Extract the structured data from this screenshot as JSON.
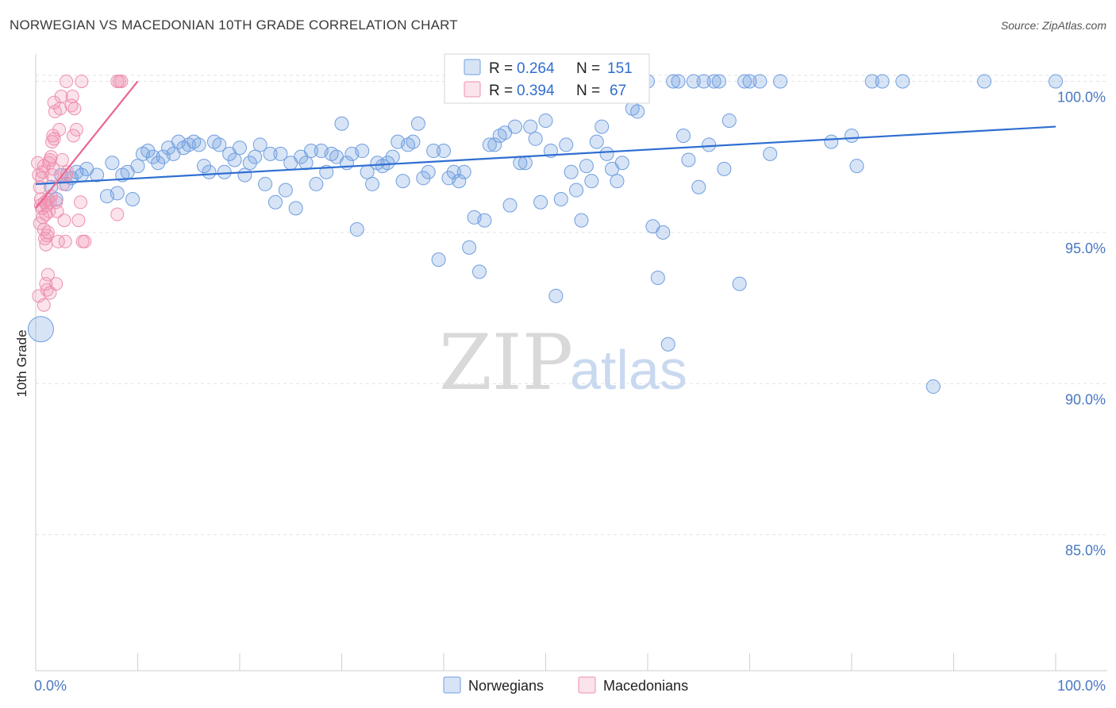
{
  "header": {
    "title": "NORWEGIAN VS MACEDONIAN 10TH GRADE CORRELATION CHART",
    "source": "Source: ZipAtlas.com"
  },
  "watermark": {
    "zip": "ZIP",
    "atlas": "atlas"
  },
  "colors": {
    "blue": "#6f9ee0",
    "blue_fill": "rgba(111,158,224,0.28)",
    "blue_line": "#2f6ed1",
    "pink": "#ee8fae",
    "pink_fill": "rgba(238,143,174,0.25)",
    "pink_line": "#e8678f",
    "grid": "#e3e3e3"
  },
  "chart_data": {
    "type": "scatter",
    "title": "NORWEGIAN VS MACEDONIAN 10TH GRADE CORRELATION CHART",
    "xlabel": "",
    "ylabel": "10th Grade",
    "xlim": [
      0,
      100
    ],
    "ylim": [
      80.5,
      100.8
    ],
    "x_tick_labels": [
      "0.0%",
      "100.0%"
    ],
    "y_ticks": [
      100,
      95,
      90,
      85
    ],
    "y_tick_labels": [
      "100.0%",
      "95.0%",
      "90.0%",
      "85.0%"
    ],
    "grid": "horizontal dashed",
    "legend_position": "top-center",
    "stats": [
      {
        "r_label": "R =",
        "r": "0.264",
        "n_label": "N =",
        "n": "151"
      },
      {
        "r_label": "R =",
        "r": "0.394",
        "n_label": "N =",
        "n": "67"
      }
    ],
    "series": [
      {
        "name": "Norwegians",
        "color": "#6f9ee0",
        "trend": {
          "x": [
            0,
            100
          ],
          "y": [
            96.6,
            98.5
          ]
        },
        "points": [
          [
            0.5,
            91.8
          ],
          [
            1.5,
            96.5
          ],
          [
            2,
            96.1
          ],
          [
            2.5,
            96.9
          ],
          [
            3,
            96.6
          ],
          [
            3.5,
            96.8
          ],
          [
            4,
            97.0
          ],
          [
            4.5,
            96.9
          ],
          [
            5,
            97.1
          ],
          [
            6,
            96.9
          ],
          [
            7,
            96.2
          ],
          [
            7.5,
            97.3
          ],
          [
            8,
            96.3
          ],
          [
            8.5,
            96.9
          ],
          [
            9,
            97.0
          ],
          [
            9.5,
            96.1
          ],
          [
            10,
            97.2
          ],
          [
            10.5,
            97.6
          ],
          [
            11,
            97.7
          ],
          [
            11.5,
            97.5
          ],
          [
            12,
            97.3
          ],
          [
            12.5,
            97.5
          ],
          [
            13,
            97.8
          ],
          [
            13.5,
            97.6
          ],
          [
            14,
            98.0
          ],
          [
            14.5,
            97.8
          ],
          [
            15,
            97.9
          ],
          [
            15.5,
            98.0
          ],
          [
            16,
            97.9
          ],
          [
            16.5,
            97.2
          ],
          [
            17,
            97.0
          ],
          [
            17.5,
            98.0
          ],
          [
            18,
            97.9
          ],
          [
            18.5,
            97.0
          ],
          [
            19,
            97.6
          ],
          [
            19.5,
            97.4
          ],
          [
            20,
            97.8
          ],
          [
            20.5,
            96.9
          ],
          [
            21,
            97.3
          ],
          [
            21.5,
            97.5
          ],
          [
            22,
            97.9
          ],
          [
            22.5,
            96.6
          ],
          [
            23,
            97.6
          ],
          [
            23.5,
            96.0
          ],
          [
            24,
            97.6
          ],
          [
            24.5,
            96.4
          ],
          [
            25,
            97.3
          ],
          [
            25.5,
            95.8
          ],
          [
            26,
            97.5
          ],
          [
            26.5,
            97.3
          ],
          [
            27,
            97.7
          ],
          [
            27.5,
            96.6
          ],
          [
            28,
            97.7
          ],
          [
            28.5,
            97.0
          ],
          [
            29,
            97.6
          ],
          [
            29.5,
            97.5
          ],
          [
            30,
            98.6
          ],
          [
            30.5,
            97.3
          ],
          [
            31,
            97.6
          ],
          [
            31.5,
            95.1
          ],
          [
            32,
            97.7
          ],
          [
            32.5,
            97.0
          ],
          [
            33,
            96.6
          ],
          [
            33.5,
            97.3
          ],
          [
            34,
            97.2
          ],
          [
            34.5,
            97.3
          ],
          [
            35,
            97.5
          ],
          [
            35.5,
            98.0
          ],
          [
            36,
            96.7
          ],
          [
            36.5,
            97.9
          ],
          [
            37,
            98.0
          ],
          [
            37.5,
            98.6
          ],
          [
            38,
            96.8
          ],
          [
            38.5,
            97.0
          ],
          [
            39,
            97.7
          ],
          [
            39.5,
            94.1
          ],
          [
            40,
            97.7
          ],
          [
            40.5,
            96.8
          ],
          [
            41,
            97.0
          ],
          [
            41.5,
            96.7
          ],
          [
            42,
            97.0
          ],
          [
            42.5,
            94.5
          ],
          [
            43,
            95.5
          ],
          [
            43.5,
            93.7
          ],
          [
            44,
            95.4
          ],
          [
            44.5,
            97.9
          ],
          [
            45,
            97.9
          ],
          [
            45.5,
            98.2
          ],
          [
            46,
            98.3
          ],
          [
            46.5,
            95.9
          ],
          [
            47,
            98.5
          ],
          [
            47.5,
            97.3
          ],
          [
            48,
            97.3
          ],
          [
            48.5,
            98.5
          ],
          [
            49,
            98.1
          ],
          [
            49.5,
            96.0
          ],
          [
            50,
            98.7
          ],
          [
            50.5,
            97.7
          ],
          [
            51,
            92.9
          ],
          [
            51.5,
            96.1
          ],
          [
            52,
            97.9
          ],
          [
            52.5,
            97.0
          ],
          [
            53,
            96.4
          ],
          [
            53.5,
            95.4
          ],
          [
            54,
            97.2
          ],
          [
            54.5,
            96.7
          ],
          [
            55,
            98.0
          ],
          [
            55.5,
            98.5
          ],
          [
            56,
            97.6
          ],
          [
            56.5,
            97.1
          ],
          [
            57,
            96.7
          ],
          [
            57.5,
            97.3
          ],
          [
            58,
            99.6
          ],
          [
            58.5,
            99.1
          ],
          [
            59,
            99.0
          ],
          [
            60,
            100.0
          ],
          [
            60.5,
            95.2
          ],
          [
            61,
            93.5
          ],
          [
            61.5,
            95.0
          ],
          [
            62,
            91.3
          ],
          [
            62.5,
            100.0
          ],
          [
            63,
            100.0
          ],
          [
            63.5,
            98.2
          ],
          [
            64,
            97.4
          ],
          [
            64.5,
            100.0
          ],
          [
            65,
            96.5
          ],
          [
            65.5,
            100.0
          ],
          [
            66,
            97.9
          ],
          [
            66.5,
            100.0
          ],
          [
            67,
            100.0
          ],
          [
            67.5,
            97.1
          ],
          [
            68,
            98.7
          ],
          [
            69,
            93.3
          ],
          [
            69.5,
            100.0
          ],
          [
            70,
            100.0
          ],
          [
            71,
            100.0
          ],
          [
            72,
            97.6
          ],
          [
            73,
            100.0
          ],
          [
            78,
            98.0
          ],
          [
            80,
            98.2
          ],
          [
            80.5,
            97.2
          ],
          [
            82,
            100.0
          ],
          [
            83,
            100.0
          ],
          [
            85,
            100.0
          ],
          [
            88,
            89.9
          ],
          [
            93,
            100.0
          ],
          [
            100,
            100.0
          ]
        ]
      },
      {
        "name": "Macedonians",
        "color": "#ee8fae",
        "trend": {
          "x": [
            0,
            10
          ],
          "y": [
            95.8,
            100.0
          ]
        },
        "points": [
          [
            0.2,
            97.3
          ],
          [
            0.3,
            96.9
          ],
          [
            0.4,
            96.5
          ],
          [
            0.5,
            96.1
          ],
          [
            0.6,
            95.8
          ],
          [
            0.7,
            95.5
          ],
          [
            0.8,
            95.1
          ],
          [
            0.9,
            94.8
          ],
          [
            1.0,
            93.3
          ],
          [
            1.1,
            93.1
          ],
          [
            0.3,
            92.9
          ],
          [
            0.4,
            95.3
          ],
          [
            0.5,
            95.9
          ],
          [
            0.6,
            96.8
          ],
          [
            0.7,
            97.0
          ],
          [
            0.8,
            97.2
          ],
          [
            0.9,
            96.0
          ],
          [
            1.0,
            95.6
          ],
          [
            1.1,
            95.9
          ],
          [
            1.2,
            96.1
          ],
          [
            1.3,
            97.3
          ],
          [
            1.4,
            97.4
          ],
          [
            1.5,
            97.5
          ],
          [
            1.6,
            98.0
          ],
          [
            1.7,
            98.2
          ],
          [
            1.8,
            99.3
          ],
          [
            1.9,
            99.0
          ],
          [
            2.0,
            96.0
          ],
          [
            2.1,
            95.7
          ],
          [
            2.2,
            94.7
          ],
          [
            1.0,
            94.6
          ],
          [
            1.1,
            94.9
          ],
          [
            1.2,
            95.0
          ],
          [
            1.3,
            95.7
          ],
          [
            1.4,
            96.0
          ],
          [
            1.5,
            96.2
          ],
          [
            1.6,
            96.9
          ],
          [
            1.7,
            97.1
          ],
          [
            1.8,
            98.1
          ],
          [
            2.3,
            98.4
          ],
          [
            2.4,
            99.1
          ],
          [
            2.5,
            99.5
          ],
          [
            2.6,
            97.4
          ],
          [
            2.7,
            96.6
          ],
          [
            2.8,
            95.4
          ],
          [
            2.9,
            94.7
          ],
          [
            3.0,
            96.9
          ],
          [
            3.1,
            97.0
          ],
          [
            3.5,
            99.2
          ],
          [
            3.6,
            99.5
          ],
          [
            3.7,
            98.2
          ],
          [
            3.8,
            99.1
          ],
          [
            4.0,
            98.4
          ],
          [
            4.2,
            95.4
          ],
          [
            4.4,
            96.0
          ],
          [
            4.6,
            94.7
          ],
          [
            4.8,
            94.7
          ],
          [
            0.8,
            92.6
          ],
          [
            1.2,
            93.6
          ],
          [
            1.4,
            93.0
          ],
          [
            2.0,
            93.3
          ],
          [
            3.0,
            100.0
          ],
          [
            4.5,
            100.0
          ],
          [
            8.0,
            100.0
          ],
          [
            8.2,
            100.0
          ],
          [
            8.4,
            100.0
          ],
          [
            8.0,
            95.6
          ]
        ]
      }
    ]
  },
  "legend": {
    "items": [
      {
        "label": "Norwegians"
      },
      {
        "label": "Macedonians"
      }
    ]
  }
}
